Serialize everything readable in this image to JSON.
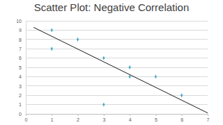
{
  "chart_data": {
    "type": "scatter",
    "title": "Scatter Plot: Negative Correlation",
    "series": [
      {
        "type": "scatter",
        "x": [
          1,
          1,
          2,
          3,
          3,
          4,
          4,
          5,
          6
        ],
        "values": [
          9,
          7,
          8,
          6,
          1,
          5,
          4,
          4,
          2
        ],
        "color": "#4bacc6",
        "marker": "diamond"
      },
      {
        "type": "line",
        "x": [
          0.3,
          7
        ],
        "values": [
          9.3,
          0.1
        ],
        "color": "#1a1a1a",
        "line_style": "solid"
      }
    ],
    "xlim": [
      0,
      7
    ],
    "xticks": [
      0,
      1,
      2,
      3,
      4,
      5,
      6,
      7
    ],
    "ylim": [
      0,
      10
    ],
    "yticks": [
      0,
      1,
      2,
      3,
      4,
      5,
      6,
      7,
      8,
      9,
      10
    ],
    "grid": true
  }
}
